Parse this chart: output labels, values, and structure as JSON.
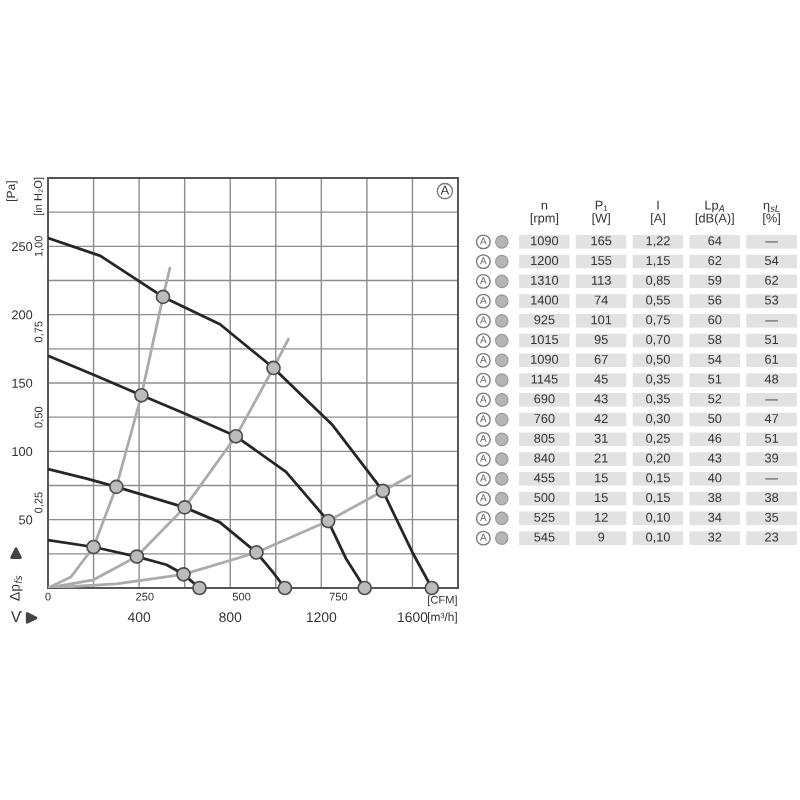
{
  "chart_data": [
    {
      "type": "line",
      "xlabel": "V̇",
      "ylabel": "Δp$_{fs}$",
      "x2label": "[CFM]",
      "y2label": "[in H₂O]",
      "annotations": [
        "A",
        "[Pa]",
        "[m³/h]"
      ],
      "series": [
        {
          "color": "#262626",
          "x": [
            0,
            230,
            505,
            755,
            990,
            1250,
            1470,
            1600,
            1685
          ],
          "values": [
            256,
            243,
            213,
            193,
            161,
            119,
            71,
            26,
            0
          ]
        },
        {
          "color": "#262626",
          "x": [
            0,
            200,
            410,
            610,
            825,
            1045,
            1230,
            1310,
            1390
          ],
          "values": [
            170,
            156,
            141,
            127,
            111,
            85,
            49,
            21,
            0
          ]
        },
        {
          "color": "#262626",
          "x": [
            0,
            170,
            300,
            600,
            755,
            915,
            990,
            1040
          ],
          "values": [
            87,
            80,
            74,
            59,
            48,
            26,
            11,
            0
          ]
        },
        {
          "color": "#262626",
          "x": [
            0,
            200,
            390,
            520,
            595,
            665
          ],
          "values": [
            35,
            30,
            23,
            17,
            10,
            0
          ]
        },
        {
          "color": "#ababab",
          "x": [
            0,
            100,
            200,
            300,
            410,
            505,
            535
          ],
          "values": [
            0,
            8,
            30,
            74,
            141,
            213,
            234
          ]
        },
        {
          "color": "#ababab",
          "x": [
            0,
            200,
            390,
            600,
            825,
            990,
            1055
          ],
          "values": [
            0,
            6,
            23,
            59,
            111,
            161,
            182
          ]
        },
        {
          "color": "#ababab",
          "x": [
            0,
            300,
            595,
            915,
            1230,
            1470,
            1590
          ],
          "values": [
            0,
            3,
            10,
            26,
            49,
            71,
            82
          ]
        },
        {
          "type": "scatter",
          "marker": "circle",
          "color": "#bcbcbc",
          "x": [
            1685,
            1470,
            990,
            505,
            1390,
            1230,
            825,
            410,
            1040,
            915,
            600,
            300,
            665,
            595,
            390,
            200
          ],
          "values": [
            0,
            71,
            161,
            213,
            0,
            49,
            111,
            141,
            0,
            26,
            59,
            74,
            0,
            10,
            23,
            30
          ]
        }
      ],
      "xlim": [
        0,
        1800
      ],
      "xticks": [
        {
          "value": 0,
          "label": null
        },
        {
          "value": 200,
          "label": null
        },
        400,
        {
          "value": 600,
          "label": null
        },
        800,
        {
          "value": 1000,
          "label": null
        },
        1200,
        {
          "value": 1400,
          "label": null
        },
        1600,
        {
          "value": 1800,
          "label": null
        }
      ],
      "ylim": [
        0,
        300
      ],
      "yticks": [
        {
          "value": 0,
          "label": null
        },
        {
          "value": 25,
          "label": null
        },
        50,
        {
          "value": 75,
          "label": null
        },
        100,
        {
          "value": 125,
          "label": null
        },
        150,
        {
          "value": 175,
          "label": null
        },
        200,
        {
          "value": 225,
          "label": null
        },
        250,
        {
          "value": 275,
          "label": null
        },
        {
          "value": 300,
          "label": null
        }
      ],
      "x2lim": [
        0,
        1059
      ],
      "x2ticks": [
        0,
        250,
        500,
        750
      ],
      "y2lim": [
        0,
        1.2
      ],
      "y2ticks": [
        {
          "value": 0.25,
          "label": "0,25"
        },
        {
          "value": 0.5,
          "label": "0,50"
        },
        {
          "value": 0.75,
          "label": "0,75"
        },
        {
          "value": 1.0,
          "label": "1,00"
        }
      ],
      "grid": true,
      "line_style": "solid"
    },
    {
      "type": "heatmap",
      "color": "#e2e2e2",
      "categories": [
        "n\n[rpm]",
        "P₁\n[W]",
        "I\n[A]",
        "Lp$_{A}$\n[dB(A)]",
        "η$_{sL}$\n[%]"
      ],
      "y_categories": [
        "A",
        "A",
        "A",
        "A",
        "A",
        "A",
        "A",
        "A",
        "A",
        "A",
        "A",
        "A",
        "A",
        "A",
        "A",
        "A"
      ],
      "cells": [
        [
          1090,
          165,
          1.22,
          64,
          null
        ],
        [
          1200,
          155,
          1.15,
          62,
          54
        ],
        [
          1310,
          113,
          0.85,
          59,
          62
        ],
        [
          1400,
          74,
          0.55,
          56,
          53
        ],
        [
          925,
          101,
          0.75,
          60,
          null
        ],
        [
          1015,
          95,
          0.7,
          58,
          51
        ],
        [
          1090,
          67,
          0.5,
          54,
          61
        ],
        [
          1145,
          45,
          0.35,
          51,
          48
        ],
        [
          690,
          43,
          0.35,
          52,
          null
        ],
        [
          760,
          42,
          0.3,
          50,
          47
        ],
        [
          805,
          31,
          0.25,
          46,
          51
        ],
        [
          840,
          21,
          0.2,
          43,
          39
        ],
        [
          455,
          15,
          0.15,
          40,
          null
        ],
        [
          500,
          15,
          0.15,
          38,
          38
        ],
        [
          525,
          12,
          0.1,
          34,
          35
        ],
        [
          545,
          9,
          0.1,
          32,
          23
        ]
      ],
      "cell_labels": [
        [
          "1090",
          "165",
          "1,22",
          "64",
          "—"
        ],
        [
          "1200",
          "155",
          "1,15",
          "62",
          "54"
        ],
        [
          "1310",
          "113",
          "0,85",
          "59",
          "62"
        ],
        [
          "1400",
          "74",
          "0,55",
          "56",
          "53"
        ],
        [
          "925",
          "101",
          "0,75",
          "60",
          "—"
        ],
        [
          "1015",
          "95",
          "0,70",
          "58",
          "51"
        ],
        [
          "1090",
          "67",
          "0,50",
          "54",
          "61"
        ],
        [
          "1145",
          "45",
          "0,35",
          "51",
          "48"
        ],
        [
          "690",
          "43",
          "0,35",
          "52",
          "—"
        ],
        [
          "760",
          "42",
          "0,30",
          "50",
          "47"
        ],
        [
          "805",
          "31",
          "0,25",
          "46",
          "51"
        ],
        [
          "840",
          "21",
          "0,20",
          "43",
          "39"
        ],
        [
          "455",
          "15",
          "0,15",
          "40",
          "—"
        ],
        [
          "500",
          "15",
          "0,15",
          "38",
          "38"
        ],
        [
          "525",
          "12",
          "0,10",
          "34",
          "35"
        ],
        [
          "545",
          "9",
          "0,10",
          "32",
          "23"
        ]
      ]
    }
  ]
}
